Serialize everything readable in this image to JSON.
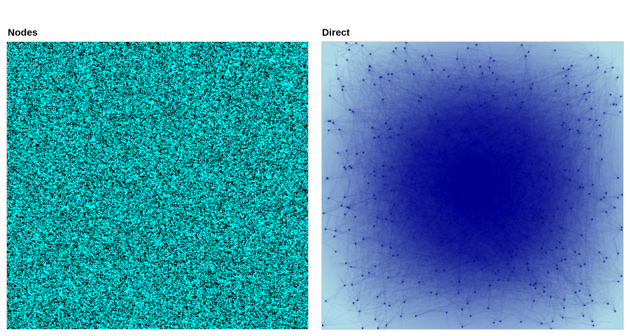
{
  "panels": {
    "left": {
      "title": "Nodes",
      "colors": {
        "background": "#000000",
        "node": "#00ffff"
      }
    },
    "right": {
      "title": "Direct",
      "colors": {
        "background": "#add8e6",
        "edge": "#00008b",
        "dense": "#00008b"
      }
    }
  }
}
